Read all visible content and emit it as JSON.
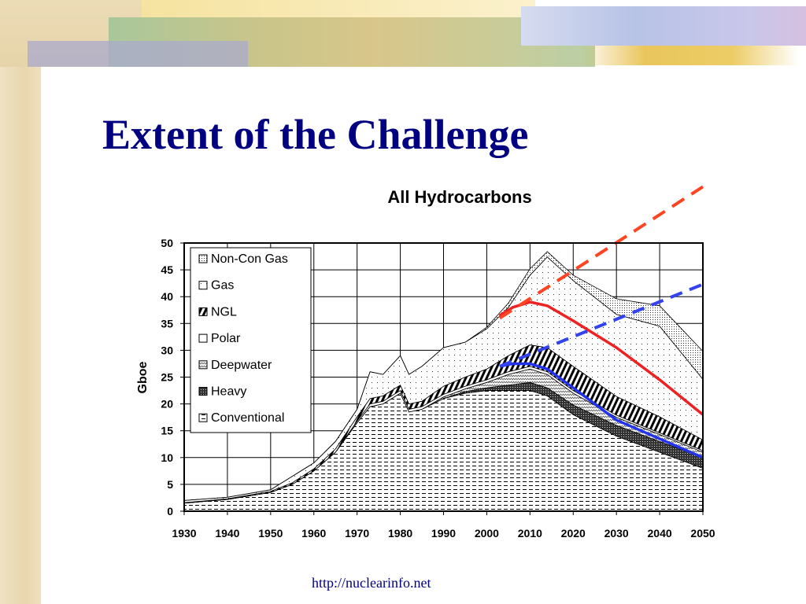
{
  "slide": {
    "title": "Extent of the Challenge",
    "footer_link": "http://nuclearinfo.net"
  },
  "chart_data": {
    "type": "area",
    "stacked": true,
    "title": "All Hydrocarbons",
    "xlabel": "",
    "ylabel": "Gboe",
    "xlim": [
      1930,
      2050
    ],
    "ylim": [
      0,
      50
    ],
    "grid": true,
    "legend_position": "top-left",
    "x_ticks": [
      "1930",
      "1940",
      "1950",
      "1960",
      "1970",
      "1980",
      "1990",
      "2000",
      "2010",
      "2020",
      "2030",
      "2040",
      "2050"
    ],
    "y_ticks": [
      "0",
      "5",
      "10",
      "15",
      "20",
      "25",
      "30",
      "35",
      "40",
      "45",
      "50"
    ],
    "x": [
      1930,
      1940,
      1950,
      1955,
      1960,
      1965,
      1970,
      1973,
      1976,
      1980,
      1982,
      1985,
      1990,
      1995,
      2000,
      2005,
      2010,
      2014,
      2020,
      2030,
      2040,
      2050
    ],
    "series": [
      {
        "name": "Conventional",
        "pattern": "hdash",
        "values": [
          1.5,
          2.2,
          3.5,
          5,
          7.5,
          11,
          16.5,
          19.5,
          20,
          22,
          18.5,
          19,
          21,
          22,
          22.5,
          22.5,
          22.5,
          21.5,
          18,
          14,
          11,
          8
        ]
      },
      {
        "name": "Heavy",
        "pattern": "dark",
        "values": [
          0,
          0,
          0,
          0,
          0,
          0,
          0,
          0,
          0,
          0,
          0,
          0,
          0,
          0.3,
          0.5,
          1,
          1.5,
          1.5,
          1.8,
          2,
          2,
          2
        ]
      },
      {
        "name": "Deepwater",
        "pattern": "zigzag",
        "values": [
          0,
          0,
          0,
          0,
          0,
          0,
          0,
          0,
          0,
          0,
          0,
          0,
          0.3,
          0.5,
          1,
          2,
          2.5,
          2.5,
          2.2,
          1.5,
          1.3,
          1
        ]
      },
      {
        "name": "Polar",
        "pattern": "white",
        "values": [
          0,
          0,
          0,
          0,
          0,
          0,
          0.3,
          0.5,
          0.5,
          0.5,
          0.5,
          0.5,
          0.5,
          0.5,
          0.5,
          0.5,
          0.5,
          0.5,
          0.5,
          0.4,
          0.3,
          0.3
        ]
      },
      {
        "name": "NGL",
        "pattern": "vstripe",
        "values": [
          0.1,
          0.1,
          0.2,
          0.3,
          0.4,
          0.6,
          0.8,
          1,
          1,
          1,
          1,
          1,
          1.5,
          1.7,
          2,
          3,
          4,
          4.5,
          4.5,
          3.5,
          3,
          2
        ]
      },
      {
        "name": "Gas",
        "pattern": "sparsedot",
        "values": [
          0.4,
          0.3,
          0.3,
          1.2,
          1.1,
          1.4,
          1.4,
          5,
          4,
          5.5,
          5.5,
          6.5,
          7.2,
          6.5,
          7.5,
          9,
          13,
          16.9,
          16,
          15.3,
          16.9,
          11.3
        ]
      },
      {
        "name": "Non-Con Gas",
        "pattern": "densedot",
        "values": [
          0,
          0,
          0,
          0,
          0,
          0,
          0,
          0,
          0,
          0,
          0,
          0,
          0,
          0,
          0.3,
          0.8,
          1.2,
          1,
          1,
          2.9,
          3.8,
          5.2
        ]
      }
    ],
    "legend": [
      "Non-Con Gas",
      "Gas",
      "NGL",
      "Polar",
      "Deepwater",
      "Heavy",
      "Conventional"
    ],
    "overlay_lines": [
      {
        "name": "red-solid",
        "color": "#ee2222",
        "dashed": false,
        "x": [
          2003,
          2006,
          2010,
          2014,
          2020,
          2030,
          2040,
          2050
        ],
        "y": [
          36.5,
          38,
          39,
          38.3,
          35.5,
          30.5,
          24.5,
          18
        ]
      },
      {
        "name": "red-dashed",
        "color": "#ff4422",
        "dashed": true,
        "x": [
          2003,
          2050
        ],
        "y": [
          36,
          60.5
        ]
      },
      {
        "name": "blue-solid",
        "color": "#2233ee",
        "dashed": false,
        "x": [
          2003,
          2006,
          2010,
          2014,
          2020,
          2030,
          2040,
          2050
        ],
        "y": [
          27,
          27.5,
          27.5,
          26.5,
          23,
          17,
          13.5,
          10
        ]
      },
      {
        "name": "blue-dashed",
        "color": "#3344ee",
        "dashed": true,
        "x": [
          2003,
          2050
        ],
        "y": [
          27,
          42.3
        ]
      }
    ]
  }
}
